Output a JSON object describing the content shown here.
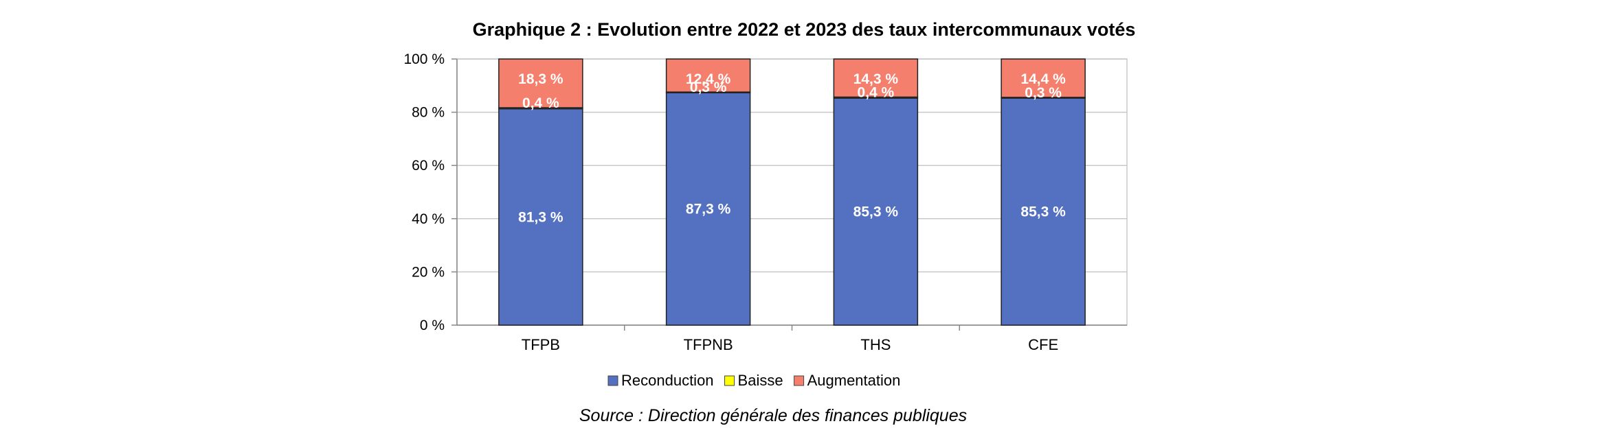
{
  "chart_data": {
    "type": "bar",
    "stacked": true,
    "title": "Graphique 2 : Evolution entre 2022 et 2023 des taux intercommunaux votés",
    "categories": [
      "TFPB",
      "TFPNB",
      "THS",
      "CFE"
    ],
    "series": [
      {
        "name": "Reconduction",
        "color": "#5470c0",
        "values": [
          81.3,
          87.3,
          85.3,
          85.3
        ],
        "labels": [
          "81,3 %",
          "87,3 %",
          "85,3 %",
          "85,3 %"
        ]
      },
      {
        "name": "Baisse",
        "color": "#ffff00",
        "values": [
          0.4,
          0.3,
          0.4,
          0.3
        ],
        "labels": [
          "0,4 %",
          "0,3 %",
          "0,4 %",
          "0,3 %"
        ]
      },
      {
        "name": "Augmentation",
        "color": "#f47f6c",
        "values": [
          18.3,
          12.4,
          14.3,
          14.4
        ],
        "labels": [
          "18,3 %",
          "12,4 %",
          "14,3 %",
          "14,4 %"
        ]
      }
    ],
    "ylim": [
      0,
      100
    ],
    "yticks": [
      "0 %",
      "20 %",
      "40 %",
      "60 %",
      "80 %",
      "100 %"
    ],
    "grid": true,
    "legend_position": "bottom"
  },
  "source": "Source : Direction générale des finances publiques"
}
